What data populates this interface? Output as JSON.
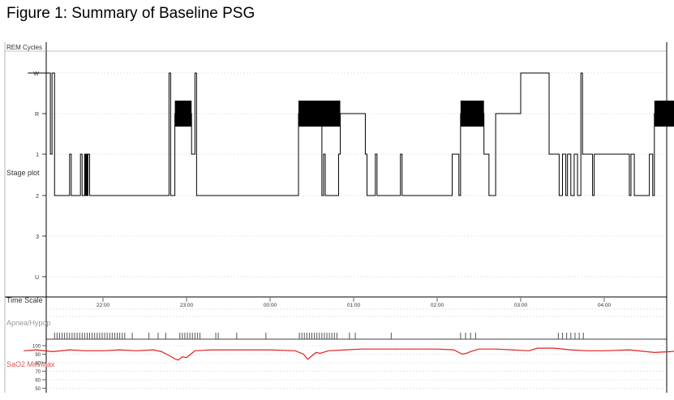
{
  "figure_title": "Figure 1: Summary of Baseline PSG",
  "panels": {
    "rem_cycles": "REM Cycles",
    "stage_plot": "Stage plot",
    "time_scale": "Time Scale",
    "apnea": "Apnea/Hypop",
    "sao2": "SaO2 Min/Max"
  },
  "colors": {
    "trace": "#000000",
    "spo2": "#e02020",
    "events": "#555555",
    "apnea_label": "#9a9a9a",
    "spo2_label": "#e05050"
  },
  "chart_data": [
    {
      "type": "line",
      "name": "hypnogram",
      "ylabel": "Stage plot",
      "y_ticks": [
        "W",
        "R",
        "1",
        "2",
        "3",
        "U"
      ],
      "x_time_labels": [
        "22:00",
        "23:00",
        "00:00",
        "01:00",
        "02:00",
        "03:00",
        "04:00"
      ],
      "x_range_hours": [
        21.4,
        24.6
      ],
      "x_range_note_hours": "hours since 21:00 (22:00 = 1.0)",
      "steps": [
        [
          0.1,
          "W"
        ],
        [
          0.36,
          "W"
        ],
        [
          0.37,
          "1"
        ],
        [
          0.39,
          "W"
        ],
        [
          0.42,
          "2"
        ],
        [
          0.58,
          "2"
        ],
        [
          0.6,
          "1"
        ],
        [
          0.62,
          "2"
        ],
        [
          0.73,
          "1"
        ],
        [
          0.75,
          "2"
        ],
        [
          0.78,
          "1"
        ],
        [
          0.79,
          "2"
        ],
        [
          0.8,
          "1"
        ],
        [
          0.81,
          "2"
        ],
        [
          0.82,
          "1"
        ],
        [
          0.84,
          "2"
        ],
        [
          1.78,
          "2"
        ],
        [
          1.79,
          "W"
        ],
        [
          1.81,
          "2"
        ],
        [
          1.86,
          "R"
        ],
        [
          2.06,
          "1"
        ],
        [
          2.1,
          "W"
        ],
        [
          2.12,
          "2"
        ],
        [
          3.32,
          "2"
        ],
        [
          3.34,
          "R"
        ],
        [
          3.62,
          "2"
        ],
        [
          3.64,
          "1"
        ],
        [
          3.66,
          "2"
        ],
        [
          3.82,
          "1"
        ],
        [
          3.84,
          "R"
        ],
        [
          4.14,
          "1"
        ],
        [
          4.16,
          "2"
        ],
        [
          4.26,
          "1"
        ],
        [
          4.28,
          "2"
        ],
        [
          4.56,
          "1"
        ],
        [
          4.58,
          "2"
        ],
        [
          5.16,
          "2"
        ],
        [
          5.18,
          "1"
        ],
        [
          5.26,
          "2"
        ],
        [
          5.28,
          "R"
        ],
        [
          5.56,
          "1"
        ],
        [
          5.62,
          "2"
        ],
        [
          5.7,
          "R"
        ],
        [
          6.0,
          "W"
        ],
        [
          6.34,
          "1"
        ],
        [
          6.46,
          "2"
        ],
        [
          6.5,
          "1"
        ],
        [
          6.54,
          "2"
        ],
        [
          6.56,
          "1"
        ],
        [
          6.6,
          "2"
        ],
        [
          6.64,
          "1"
        ],
        [
          6.68,
          "2"
        ],
        [
          6.72,
          "W"
        ],
        [
          6.74,
          "1"
        ],
        [
          6.86,
          "2"
        ],
        [
          6.88,
          "1"
        ],
        [
          7.3,
          "2"
        ],
        [
          7.32,
          "1"
        ],
        [
          7.36,
          "2"
        ],
        [
          7.54,
          "1"
        ],
        [
          7.58,
          "2"
        ],
        [
          7.6,
          "R"
        ],
        [
          7.94,
          "2"
        ],
        [
          8.7,
          "2"
        ]
      ],
      "rem_blocks": [
        [
          1.86,
          2.06
        ],
        [
          3.34,
          3.84
        ],
        [
          5.28,
          5.56
        ],
        [
          7.6,
          7.94
        ]
      ]
    },
    {
      "type": "scatter",
      "name": "apnea events",
      "ylabel": "Apnea/Hypop",
      "events_hours": [
        0.42,
        0.45,
        0.48,
        0.51,
        0.54,
        0.57,
        0.6,
        0.63,
        0.66,
        0.69,
        0.72,
        0.75,
        0.78,
        0.81,
        0.84,
        0.87,
        0.9,
        0.93,
        0.96,
        0.99,
        1.02,
        1.05,
        1.08,
        1.11,
        1.14,
        1.17,
        1.2,
        1.23,
        1.26,
        1.35,
        1.55,
        1.66,
        1.75,
        1.92,
        1.95,
        1.98,
        2.01,
        2.04,
        2.07,
        2.1,
        2.13,
        2.16,
        2.35,
        2.38,
        2.6,
        2.95,
        3.35,
        3.38,
        3.41,
        3.44,
        3.47,
        3.5,
        3.53,
        3.56,
        3.59,
        3.62,
        3.65,
        3.68,
        3.71,
        3.74,
        3.77,
        3.8,
        3.95,
        4.02,
        4.45,
        5.28,
        5.34,
        5.4,
        5.46,
        6.45,
        6.5,
        6.55,
        6.6,
        6.65,
        6.7,
        6.75
      ]
    },
    {
      "type": "line",
      "name": "SaO2",
      "ylabel": "SaO2 Min/Max",
      "y_ticks": [
        100,
        90,
        80,
        70,
        60,
        50
      ],
      "ylim": [
        50,
        100
      ],
      "x": [
        0.05,
        0.2,
        0.4,
        0.6,
        0.8,
        1.0,
        1.2,
        1.4,
        1.6,
        1.7,
        1.8,
        1.85,
        1.9,
        1.95,
        2.0,
        2.05,
        2.1,
        2.3,
        2.6,
        3.0,
        3.3,
        3.4,
        3.45,
        3.5,
        3.55,
        3.6,
        3.7,
        3.9,
        4.1,
        4.4,
        4.7,
        5.0,
        5.2,
        5.3,
        5.35,
        5.4,
        5.5,
        5.7,
        5.9,
        6.1,
        6.2,
        6.4,
        6.6,
        6.8,
        7.0,
        7.3,
        7.6,
        7.8,
        8.0,
        8.3,
        8.6,
        8.75
      ],
      "values": [
        94,
        95,
        93,
        95,
        94,
        94,
        95,
        94,
        95,
        93,
        88,
        85,
        83,
        87,
        86,
        90,
        94,
        95,
        95,
        95,
        94,
        90,
        84,
        88,
        92,
        91,
        94,
        95,
        96,
        96,
        96,
        96,
        95,
        90,
        91,
        93,
        96,
        96,
        95,
        94,
        97,
        97,
        95,
        94,
        94,
        95,
        92,
        93,
        95,
        95,
        95,
        95
      ]
    }
  ]
}
